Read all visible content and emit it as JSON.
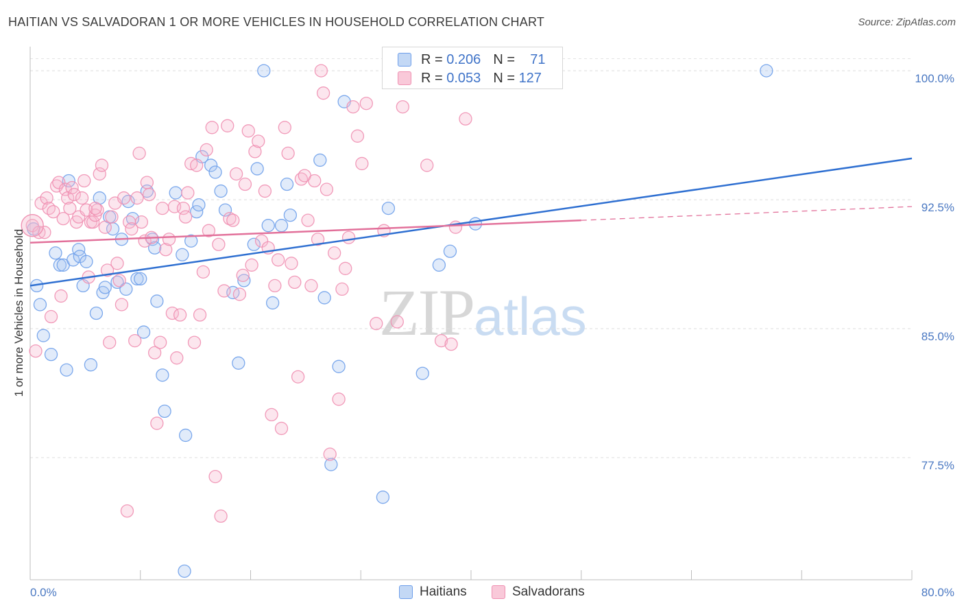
{
  "header": {
    "title": "HAITIAN VS SALVADORAN 1 OR MORE VEHICLES IN HOUSEHOLD CORRELATION CHART",
    "source": "Source: ZipAtlas.com"
  },
  "watermark": {
    "zip": "ZIP",
    "atlas": "atlas"
  },
  "legend": {
    "rows": [
      {
        "r_label": "R =",
        "r_value": "0.206",
        "n_label": "N =",
        "n_value": "71"
      },
      {
        "r_label": "R =",
        "r_value": "0.053",
        "n_label": "N =",
        "n_value": "127"
      }
    ]
  },
  "bottom_legend": {
    "series1": "Haitians",
    "series2": "Salvadorans"
  },
  "chart_data": {
    "type": "scatter",
    "title": "HAITIAN VS SALVADORAN 1 OR MORE VEHICLES IN HOUSEHOLD CORRELATION CHART",
    "xlabel": "",
    "ylabel": "1 or more Vehicles in Household",
    "xlim": [
      0,
      80
    ],
    "ylim": [
      70.4,
      101.4
    ],
    "x_tick_labels": [
      "0.0%",
      "80.0%"
    ],
    "y_ticks": [
      77.5,
      85.0,
      92.5,
      100.0
    ],
    "y_tick_labels": [
      "77.5%",
      "85.0%",
      "92.5%",
      "100.0%"
    ],
    "grid": "horizontal dashed",
    "legend_placement": "top-center",
    "colors": {
      "haitians": "#6d9eea",
      "salvadorans": "#ef8fb1",
      "haitians_line": "#2e6fd1",
      "salvadorans_line": "#e2709a"
    },
    "series": [
      {
        "name": "Haitians",
        "r": 0.206,
        "n": 71,
        "trend": {
          "x": [
            0,
            80
          ],
          "y": [
            87.5,
            94.9
          ]
        },
        "points": [
          [
            0.3,
            90.8
          ],
          [
            0.6,
            87.5
          ],
          [
            0.9,
            86.4
          ],
          [
            1.2,
            84.6
          ],
          [
            1.9,
            83.5
          ],
          [
            2.3,
            89.4
          ],
          [
            2.7,
            88.7
          ],
          [
            3.0,
            88.7
          ],
          [
            3.3,
            82.6
          ],
          [
            3.5,
            93.6
          ],
          [
            3.9,
            89.0
          ],
          [
            4.4,
            89.6
          ],
          [
            4.5,
            89.2
          ],
          [
            4.8,
            87.5
          ],
          [
            5.1,
            88.9
          ],
          [
            6.0,
            85.9
          ],
          [
            5.5,
            82.9
          ],
          [
            6.3,
            92.6
          ],
          [
            6.6,
            87.1
          ],
          [
            6.8,
            87.4
          ],
          [
            7.2,
            91.5
          ],
          [
            7.5,
            90.8
          ],
          [
            7.9,
            87.7
          ],
          [
            8.3,
            90.2
          ],
          [
            8.7,
            87.3
          ],
          [
            8.9,
            92.4
          ],
          [
            9.3,
            91.4
          ],
          [
            9.7,
            87.9
          ],
          [
            10.0,
            87.9
          ],
          [
            10.3,
            84.8
          ],
          [
            10.6,
            93.0
          ],
          [
            11.1,
            90.2
          ],
          [
            11.3,
            89.7
          ],
          [
            11.5,
            86.6
          ],
          [
            12.0,
            82.3
          ],
          [
            12.2,
            80.2
          ],
          [
            13.2,
            92.9
          ],
          [
            13.8,
            89.3
          ],
          [
            14.1,
            78.8
          ],
          [
            14.6,
            90.1
          ],
          [
            15.1,
            91.8
          ],
          [
            15.3,
            92.2
          ],
          [
            15.6,
            95.0
          ],
          [
            16.4,
            94.5
          ],
          [
            16.8,
            94.1
          ],
          [
            17.3,
            93.0
          ],
          [
            17.7,
            91.9
          ],
          [
            18.4,
            87.1
          ],
          [
            18.9,
            83.0
          ],
          [
            19.4,
            87.8
          ],
          [
            20.3,
            89.9
          ],
          [
            20.6,
            94.3
          ],
          [
            21.2,
            100.0
          ],
          [
            21.6,
            91.0
          ],
          [
            22.0,
            86.5
          ],
          [
            22.8,
            91.0
          ],
          [
            23.3,
            93.4
          ],
          [
            23.6,
            91.6
          ],
          [
            26.3,
            94.8
          ],
          [
            26.7,
            86.8
          ],
          [
            27.3,
            77.1
          ],
          [
            28.0,
            82.8
          ],
          [
            28.5,
            98.2
          ],
          [
            32.0,
            75.2
          ],
          [
            32.5,
            92.0
          ],
          [
            35.6,
            82.4
          ],
          [
            37.1,
            88.7
          ],
          [
            38.1,
            89.5
          ],
          [
            40.4,
            91.1
          ],
          [
            66.8,
            100.0
          ],
          [
            14.0,
            70.9
          ]
        ]
      },
      {
        "name": "Salvadorans",
        "r": 0.053,
        "n": 127,
        "trend": {
          "x": [
            0,
            50
          ],
          "y": [
            90.0,
            91.3
          ]
        },
        "trend_extension": {
          "x": [
            50,
            80
          ],
          "y": [
            91.3,
            92.1
          ]
        },
        "points": [
          [
            0.2,
            91.0
          ],
          [
            0.5,
            83.7
          ],
          [
            0.8,
            90.6
          ],
          [
            1.0,
            92.3
          ],
          [
            1.3,
            90.6
          ],
          [
            1.5,
            92.6
          ],
          [
            1.7,
            92.0
          ],
          [
            1.9,
            85.7
          ],
          [
            2.1,
            91.8
          ],
          [
            2.4,
            93.3
          ],
          [
            2.6,
            93.5
          ],
          [
            2.8,
            86.9
          ],
          [
            3.0,
            91.4
          ],
          [
            3.2,
            93.1
          ],
          [
            3.4,
            92.6
          ],
          [
            3.6,
            92.0
          ],
          [
            3.8,
            93.2
          ],
          [
            4.0,
            92.8
          ],
          [
            4.2,
            91.2
          ],
          [
            4.4,
            91.5
          ],
          [
            4.7,
            92.6
          ],
          [
            4.9,
            93.6
          ],
          [
            5.1,
            91.9
          ],
          [
            5.3,
            88.0
          ],
          [
            5.5,
            91.2
          ],
          [
            5.7,
            91.2
          ],
          [
            5.9,
            91.6
          ],
          [
            6.1,
            91.9
          ],
          [
            6.3,
            94.0
          ],
          [
            6.5,
            94.5
          ],
          [
            6.8,
            90.9
          ],
          [
            7.0,
            88.4
          ],
          [
            7.2,
            84.2
          ],
          [
            7.4,
            91.5
          ],
          [
            7.7,
            92.3
          ],
          [
            7.9,
            88.8
          ],
          [
            8.1,
            87.8
          ],
          [
            8.3,
            86.4
          ],
          [
            8.5,
            92.6
          ],
          [
            8.8,
            74.4
          ],
          [
            9.0,
            91.2
          ],
          [
            9.2,
            90.8
          ],
          [
            9.5,
            84.3
          ],
          [
            9.7,
            92.6
          ],
          [
            9.9,
            95.2
          ],
          [
            10.1,
            91.2
          ],
          [
            10.4,
            90.1
          ],
          [
            10.6,
            93.5
          ],
          [
            10.8,
            92.8
          ],
          [
            11.0,
            90.3
          ],
          [
            11.3,
            83.6
          ],
          [
            11.5,
            79.5
          ],
          [
            11.8,
            84.2
          ],
          [
            12.0,
            92.0
          ],
          [
            12.3,
            89.6
          ],
          [
            12.6,
            90.2
          ],
          [
            12.9,
            85.9
          ],
          [
            13.1,
            92.1
          ],
          [
            13.3,
            83.3
          ],
          [
            13.6,
            85.8
          ],
          [
            13.9,
            92.0
          ],
          [
            14.1,
            91.5
          ],
          [
            14.3,
            92.9
          ],
          [
            14.6,
            94.6
          ],
          [
            14.9,
            84.2
          ],
          [
            15.1,
            94.5
          ],
          [
            15.4,
            85.8
          ],
          [
            15.7,
            88.3
          ],
          [
            16.0,
            95.4
          ],
          [
            16.2,
            90.7
          ],
          [
            16.5,
            96.7
          ],
          [
            16.8,
            76.4
          ],
          [
            17.1,
            89.9
          ],
          [
            17.3,
            74.1
          ],
          [
            17.6,
            87.2
          ],
          [
            17.9,
            96.8
          ],
          [
            18.1,
            91.4
          ],
          [
            18.4,
            91.3
          ],
          [
            18.7,
            94.0
          ],
          [
            19.0,
            87.0
          ],
          [
            19.3,
            88.1
          ],
          [
            19.5,
            93.4
          ],
          [
            19.8,
            96.5
          ],
          [
            20.1,
            88.7
          ],
          [
            20.4,
            95.3
          ],
          [
            20.7,
            95.9
          ],
          [
            21.0,
            90.1
          ],
          [
            21.3,
            93.0
          ],
          [
            21.6,
            89.7
          ],
          [
            21.9,
            80.0
          ],
          [
            22.2,
            87.5
          ],
          [
            22.5,
            89.0
          ],
          [
            22.8,
            79.2
          ],
          [
            23.1,
            96.7
          ],
          [
            23.4,
            95.2
          ],
          [
            23.7,
            88.8
          ],
          [
            24.0,
            87.7
          ],
          [
            24.3,
            82.2
          ],
          [
            24.6,
            93.7
          ],
          [
            24.9,
            93.9
          ],
          [
            25.2,
            91.3
          ],
          [
            25.5,
            87.5
          ],
          [
            25.8,
            93.6
          ],
          [
            26.1,
            90.2
          ],
          [
            26.4,
            100.0
          ],
          [
            26.6,
            98.7
          ],
          [
            26.9,
            93.1
          ],
          [
            27.2,
            77.7
          ],
          [
            27.6,
            89.4
          ],
          [
            28.0,
            80.9
          ],
          [
            28.3,
            87.3
          ],
          [
            28.6,
            88.5
          ],
          [
            28.9,
            90.3
          ],
          [
            29.3,
            97.9
          ],
          [
            29.7,
            96.2
          ],
          [
            30.1,
            94.6
          ],
          [
            30.5,
            98.1
          ],
          [
            31.4,
            85.3
          ],
          [
            32.1,
            90.7
          ],
          [
            33.3,
            85.4
          ],
          [
            33.8,
            97.9
          ],
          [
            36.0,
            94.5
          ],
          [
            37.3,
            84.3
          ],
          [
            38.2,
            84.1
          ],
          [
            38.6,
            90.9
          ],
          [
            39.5,
            97.2
          ],
          [
            5.9,
            92.0
          ]
        ]
      }
    ]
  }
}
